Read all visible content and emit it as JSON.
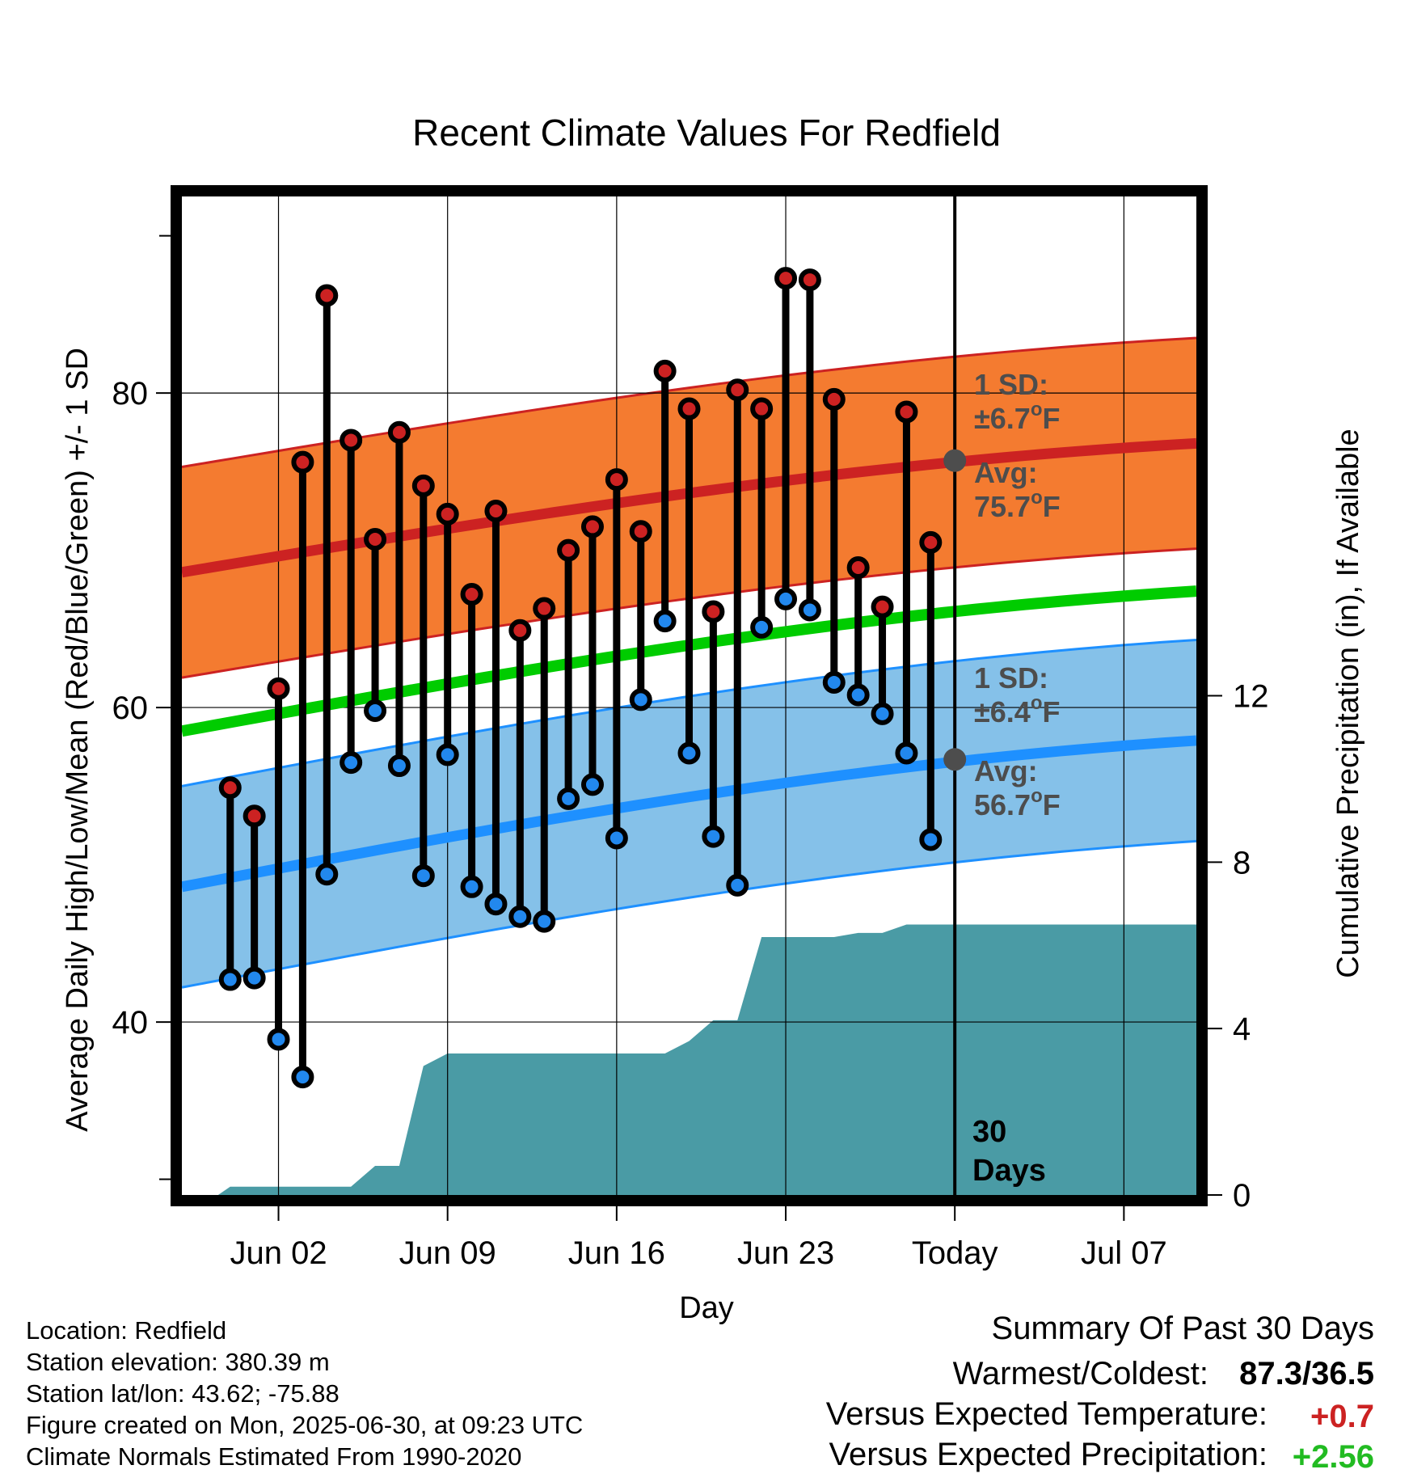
{
  "chart_data": {
    "type": "line",
    "title": "Recent Climate Values For Redfield",
    "xlabel": "Day",
    "ylabel_left": "Average Daily High/Low/Mean (Red/Blue/Green) +/- 1 SD",
    "ylabel_right": "Cumulative Precipitation (in), If Available",
    "x_ticks": [
      "Jun 02",
      "Jun 09",
      "Jun 16",
      "Jun 23",
      "Today",
      "Jul 07"
    ],
    "y_left_ticks": [
      "40",
      "60",
      "80"
    ],
    "y_left_range": [
      29,
      92.5
    ],
    "y_right_ticks": [
      "0",
      "4",
      "8",
      "12"
    ],
    "y_right_range": [
      0,
      24
    ],
    "x_range": [
      "May 29",
      "Jul 10"
    ],
    "today": "Jun 30",
    "days": [
      "May 31",
      "Jun 01",
      "Jun 02",
      "Jun 03",
      "Jun 04",
      "Jun 05",
      "Jun 06",
      "Jun 07",
      "Jun 08",
      "Jun 09",
      "Jun 10",
      "Jun 11",
      "Jun 12",
      "Jun 13",
      "Jun 14",
      "Jun 15",
      "Jun 16",
      "Jun 17",
      "Jun 18",
      "Jun 19",
      "Jun 20",
      "Jun 21",
      "Jun 22",
      "Jun 23",
      "Jun 24",
      "Jun 25",
      "Jun 26",
      "Jun 27",
      "Jun 28",
      "Jun 29"
    ],
    "series": [
      {
        "name": "High",
        "color": "#cc2222",
        "values": [
          54.9,
          53.1,
          61.2,
          75.6,
          86.2,
          77.0,
          70.7,
          77.5,
          74.1,
          72.3,
          67.2,
          72.5,
          64.9,
          66.3,
          70.0,
          71.5,
          74.5,
          71.2,
          81.4,
          79.0,
          66.1,
          80.2,
          79.0,
          87.3,
          87.2,
          79.6,
          68.9,
          66.4,
          78.8,
          70.5
        ]
      },
      {
        "name": "Low",
        "color": "#2288ee",
        "values": [
          42.7,
          42.8,
          38.9,
          36.5,
          49.4,
          56.5,
          59.8,
          56.3,
          49.3,
          57.0,
          48.6,
          47.5,
          46.7,
          46.4,
          54.2,
          55.1,
          51.7,
          60.5,
          65.5,
          57.1,
          51.8,
          48.7,
          65.1,
          66.9,
          66.2,
          61.6,
          60.8,
          59.6,
          57.1,
          51.6
        ]
      },
      {
        "name": "Precipitation",
        "color": "#4a9ba5",
        "cumulative": [
          0.2,
          0.2,
          0.2,
          0.2,
          0.2,
          0.2,
          0.7,
          0.7,
          3.1,
          3.4,
          3.4,
          3.4,
          3.4,
          3.4,
          3.4,
          3.4,
          3.4,
          3.4,
          3.4,
          3.7,
          4.2,
          4.2,
          6.2,
          6.2,
          6.2,
          6.2,
          6.3,
          6.3,
          6.5,
          6.5
        ]
      }
    ],
    "normals": {
      "high_avg": [
        68.6,
        76.8
      ],
      "high_sd": 6.7,
      "mean_avg": [
        58.5,
        67.4
      ],
      "low_avg": [
        48.6,
        57.9
      ],
      "low_sd": 6.4,
      "colors": {
        "high_band": "#f47b30",
        "high_line": "#cc2222",
        "low_band": "#85c1e9",
        "low_line": "#1e90ff",
        "mean_line": "#00cc00"
      }
    },
    "annotations": {
      "high_sd_label": "1 SD:",
      "high_sd_value": "±6.7",
      "high_avg_label": "Avg:",
      "high_avg_value": "75.7",
      "low_sd_label": "1 SD:",
      "low_sd_value": "±6.4",
      "low_avg_label": "Avg:",
      "low_avg_value": "56.7",
      "degree_unit": "o",
      "unit_letter": "F",
      "days_number": "30",
      "days_word": "Days"
    }
  },
  "footer": {
    "location": "Location: Redfield",
    "elevation": "Station elevation: 380.39 m",
    "latlon": "Station lat/lon: 43.62; -75.88",
    "created": "Figure created on Mon, 2025-06-30, at 09:23 UTC",
    "normals": "Climate Normals Estimated From 1990-2020"
  },
  "summary": {
    "title": "Summary Of Past 30 Days",
    "warm_cold_label": "Warmest/Coldest:",
    "warm_cold_value": "87.3/36.5",
    "temp_label": "Versus Expected Temperature:",
    "temp_value": "+0.7",
    "temp_color": "#cc2222",
    "precip_label": "Versus Expected Precipitation:",
    "precip_value": "+2.56",
    "precip_color": "#22bb22"
  }
}
